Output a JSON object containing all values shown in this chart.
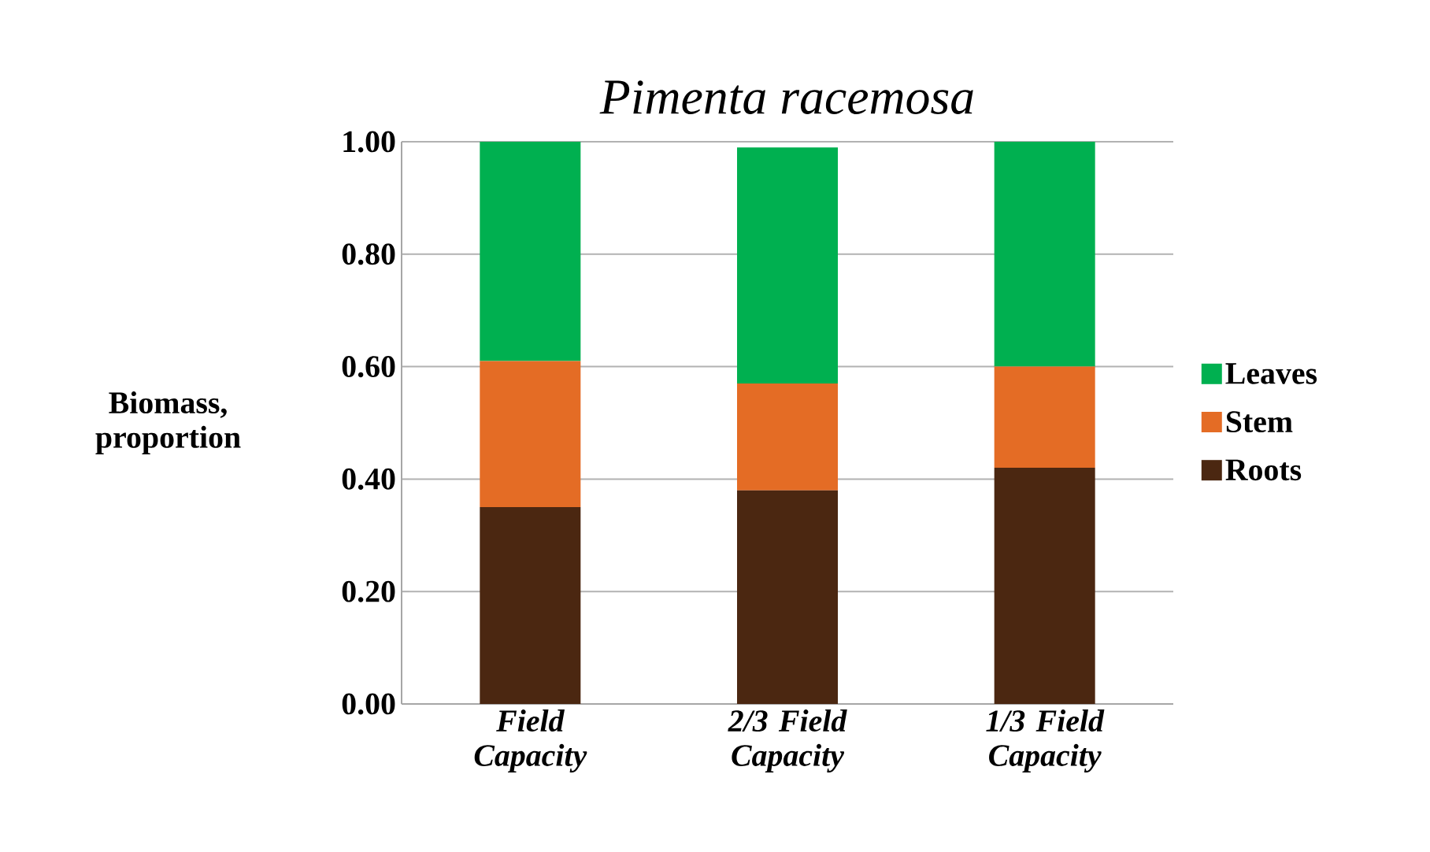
{
  "chart_data": {
    "type": "bar",
    "title": "*Pimenta racemosa*",
    "ylabel": "Biomass, proportion",
    "categories": [
      "*Field Capacity*",
      "*2/3 Field Capacity*",
      "*1/3 Field Capacity*"
    ],
    "stacked": true,
    "series": [
      {
        "name": "Roots",
        "color": "#4b2711",
        "values": [
          0.35,
          0.38,
          0.42
        ]
      },
      {
        "name": "Stem",
        "color": "#e46c25",
        "values": [
          0.26,
          0.19,
          0.18
        ]
      },
      {
        "name": "Leaves",
        "color": "#00b050",
        "values": [
          0.39,
          0.42,
          0.4
        ]
      }
    ],
    "ylim": [
      0,
      1.0
    ],
    "yticks": [
      {
        "value": 0,
        "label": "0.00"
      },
      {
        "value": 0.2,
        "label": "0.20"
      },
      {
        "value": 0.4,
        "label": "0.40"
      },
      {
        "value": 0.6,
        "label": "0.60"
      },
      {
        "value": 0.8,
        "label": "0.80"
      },
      {
        "value": 1.0,
        "label": "1.00"
      }
    ],
    "grid": "y",
    "legend": "right"
  }
}
